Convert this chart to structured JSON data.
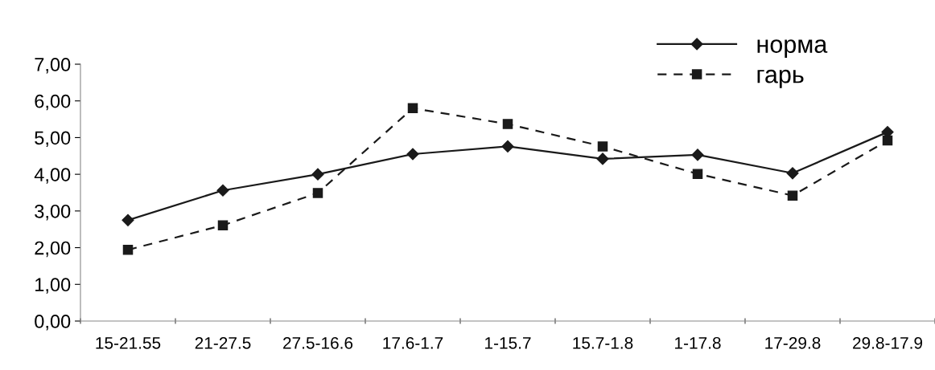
{
  "chart_data": {
    "type": "line",
    "categories": [
      "15-21.55",
      "21-27.5",
      "27.5-16.6",
      "17.6-1.7",
      "1-15.7",
      "15.7-1.8",
      "1-17.8",
      "17-29.8",
      "29.8-17.9"
    ],
    "series": [
      {
        "name": "норма",
        "color": "#1a1a1a",
        "values": [
          2.75,
          3.56,
          4.0,
          4.55,
          4.76,
          4.42,
          4.53,
          4.03,
          5.15
        ],
        "marker": "diamond",
        "line_style": "solid"
      },
      {
        "name": "гарь",
        "color": "#1a1a1a",
        "values": [
          1.94,
          2.61,
          3.49,
          5.8,
          5.37,
          4.76,
          4.01,
          3.42,
          4.92
        ],
        "marker": "square",
        "line_style": "dashed"
      }
    ],
    "ylim": [
      0,
      7
    ],
    "yticks": [
      {
        "value": 0,
        "label": "0,00"
      },
      {
        "value": 1,
        "label": "1,00"
      },
      {
        "value": 2,
        "label": "2,00"
      },
      {
        "value": 3,
        "label": "3,00"
      },
      {
        "value": 4,
        "label": "4,00"
      },
      {
        "value": 5,
        "label": "5,00"
      },
      {
        "value": 6,
        "label": "6,00"
      },
      {
        "value": 7,
        "label": "7,00"
      }
    ],
    "grid": false,
    "legend": "top right"
  }
}
